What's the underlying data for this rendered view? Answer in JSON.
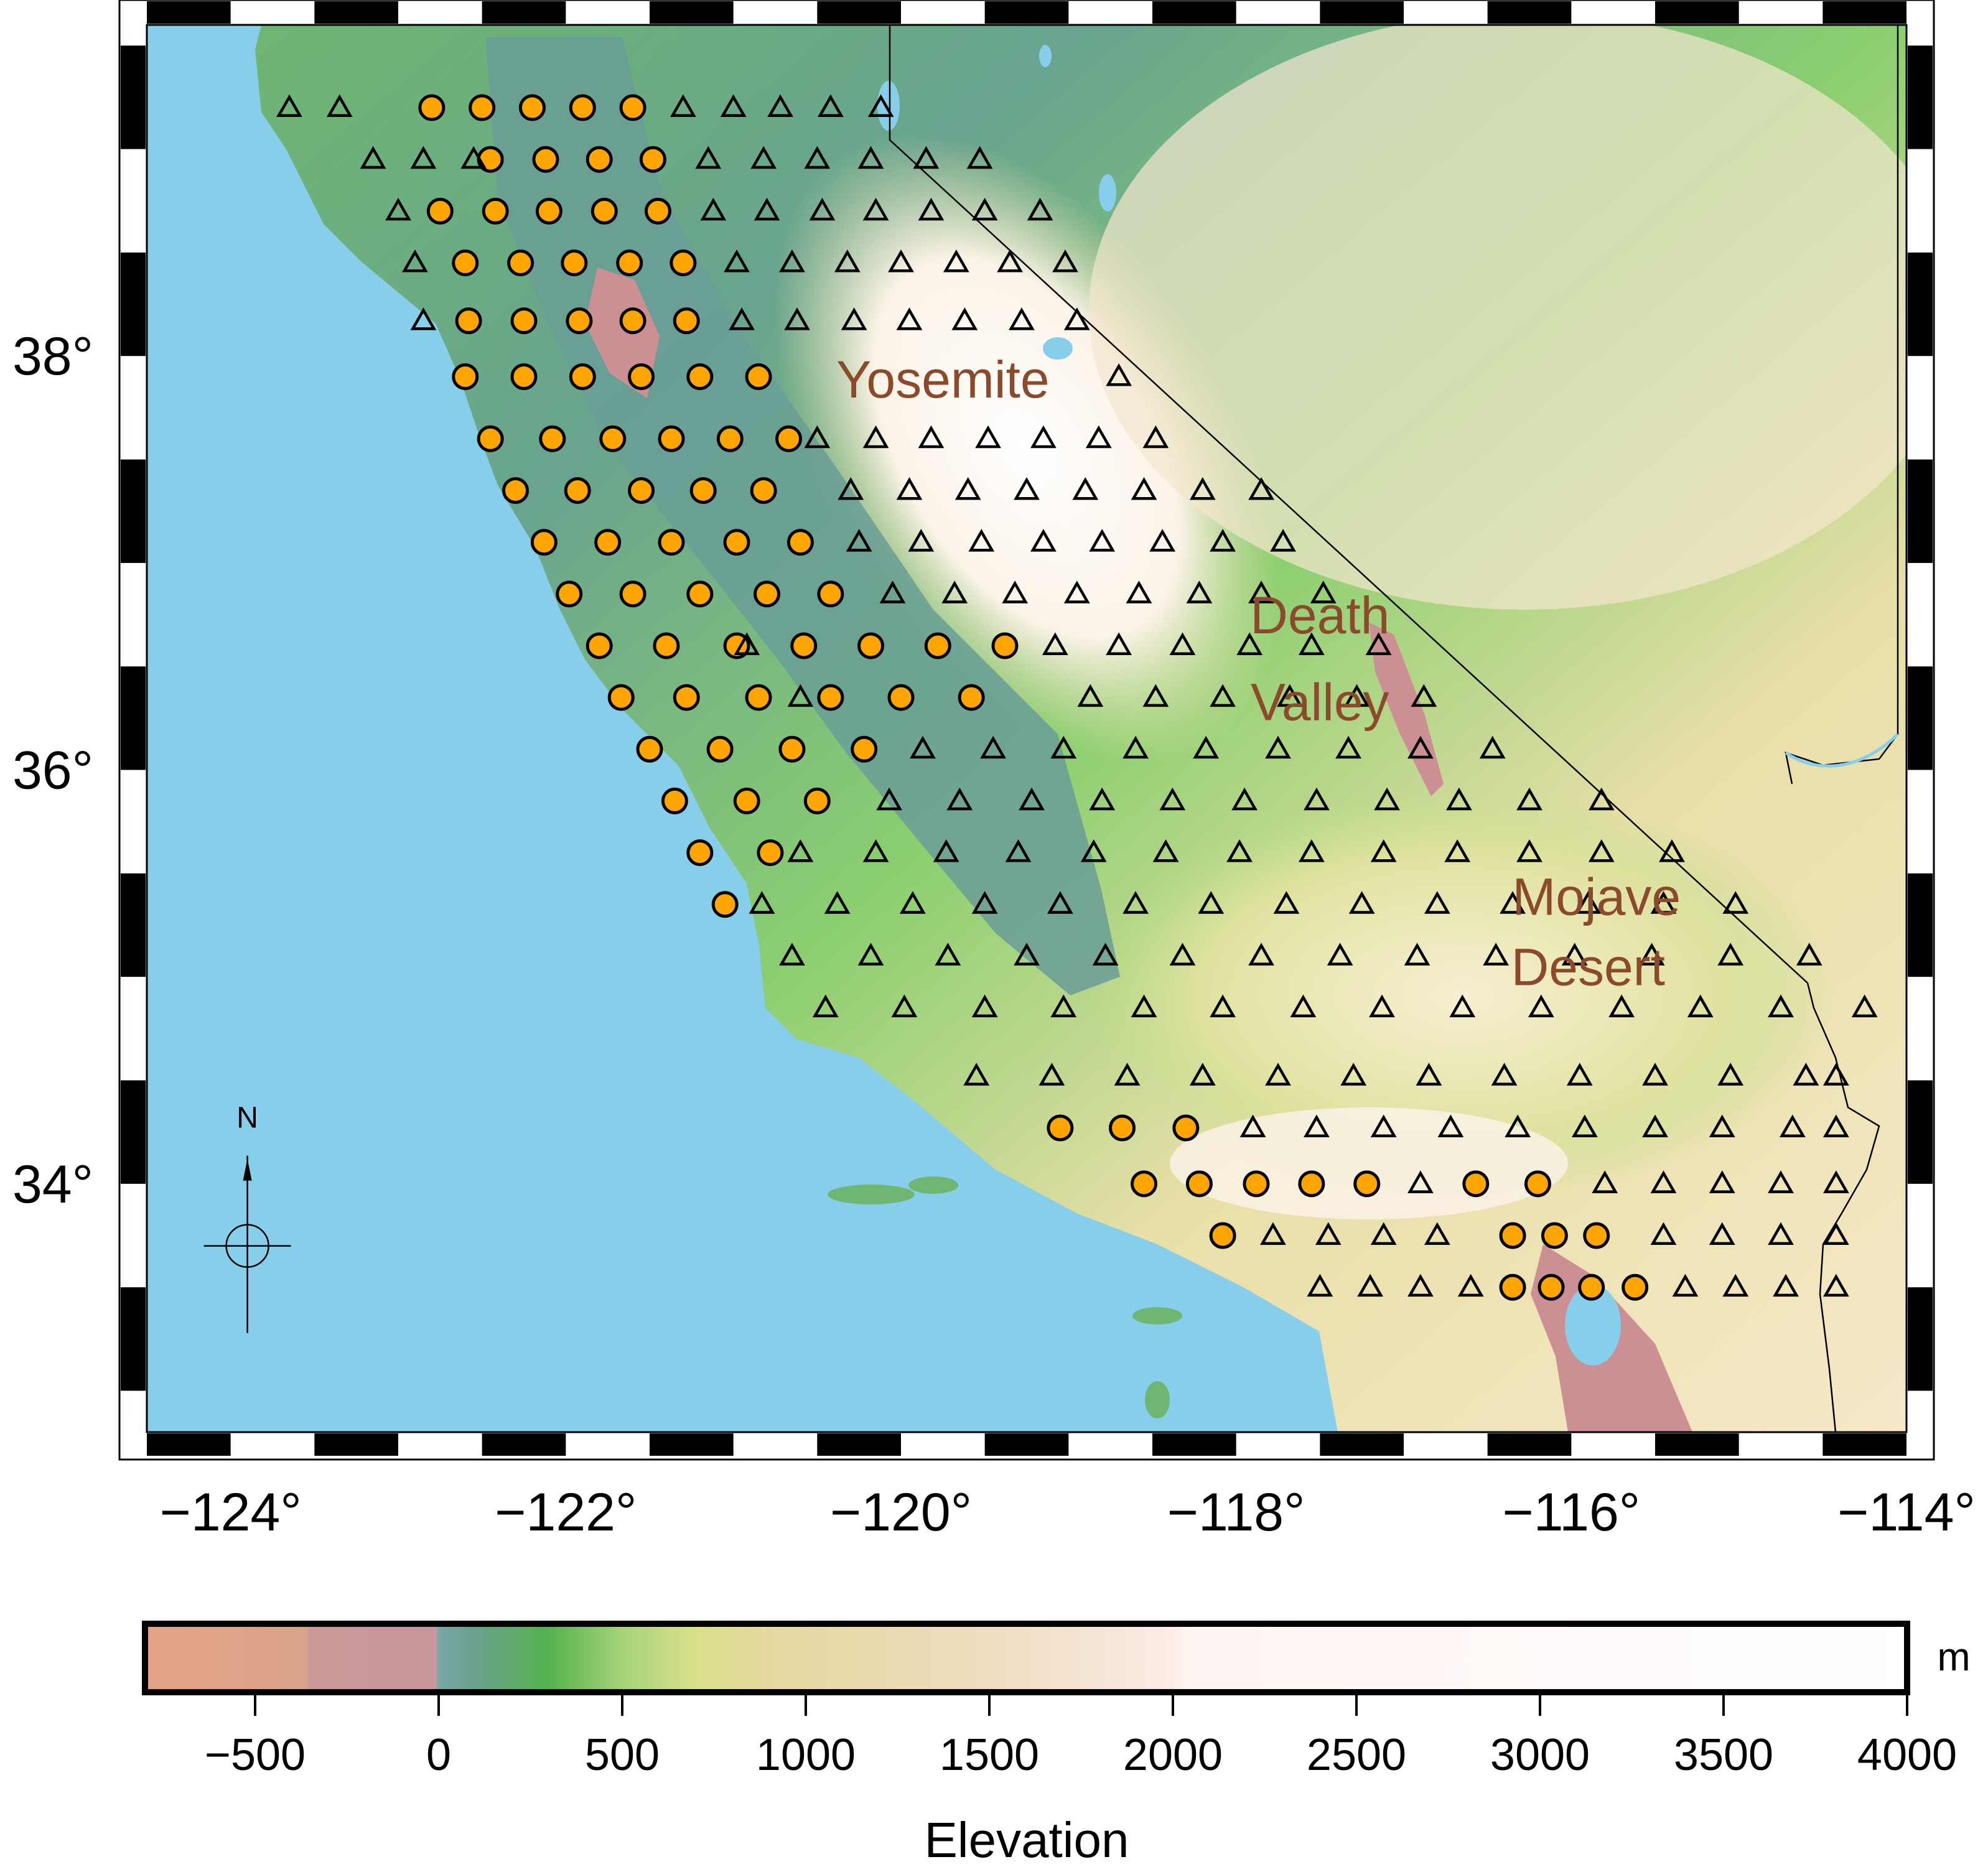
{
  "map": {
    "projection": "geographic",
    "lon_range": [
      -124.5,
      -114.0
    ],
    "lat_range": [
      32.8,
      39.6
    ],
    "frame": "checkered",
    "x_ticks": [
      {
        "value": -124,
        "label": "−124°"
      },
      {
        "value": -122,
        "label": "−122°"
      },
      {
        "value": -120,
        "label": "−120°"
      },
      {
        "value": -118,
        "label": "−118°"
      },
      {
        "value": -116,
        "label": "−116°"
      },
      {
        "value": -114,
        "label": "−114°"
      }
    ],
    "y_ticks": [
      {
        "value": 34,
        "label": "34°"
      },
      {
        "value": 36,
        "label": "36°"
      },
      {
        "value": 38,
        "label": "38°"
      }
    ],
    "place_labels": [
      {
        "text": "Yosemite",
        "lon": -119.75,
        "lat": 37.8
      },
      {
        "text": "Death",
        "lon": -117.5,
        "lat": 36.66
      },
      {
        "text": "Valley",
        "lon": -117.5,
        "lat": 36.24
      },
      {
        "text": "Mojave",
        "lon": -115.85,
        "lat": 35.3
      },
      {
        "text": "Desert",
        "lon": -115.9,
        "lat": 34.96
      }
    ],
    "compass": {
      "label": "N",
      "lon": -123.9,
      "lat": 33.7
    },
    "colors": {
      "ocean": "#87ceeb",
      "below_sea_level": "#cc8f93",
      "lowland": "#6aa08e",
      "green": "#5fba52",
      "yellow_green": "#cfe08e",
      "tan": "#e9d6a4",
      "high": "#fff8f2",
      "circle_marker": "#ffa500",
      "triangle_marker_outline": "#000000",
      "place_label": "#8b4a2b",
      "border": "#000000"
    }
  },
  "markers": {
    "circles": [
      [
        -122.8,
        39.2
      ],
      [
        -122.5,
        39.2
      ],
      [
        -122.2,
        39.2
      ],
      [
        -121.9,
        39.2
      ],
      [
        -121.6,
        39.2
      ],
      [
        -122.45,
        38.95
      ],
      [
        -122.12,
        38.95
      ],
      [
        -121.8,
        38.95
      ],
      [
        -121.48,
        38.95
      ],
      [
        -122.75,
        38.7
      ],
      [
        -122.42,
        38.7
      ],
      [
        -122.1,
        38.7
      ],
      [
        -121.77,
        38.7
      ],
      [
        -121.45,
        38.7
      ],
      [
        -122.6,
        38.45
      ],
      [
        -122.27,
        38.45
      ],
      [
        -121.95,
        38.45
      ],
      [
        -121.62,
        38.45
      ],
      [
        -121.3,
        38.45
      ],
      [
        -122.58,
        38.17
      ],
      [
        -122.25,
        38.17
      ],
      [
        -121.92,
        38.17
      ],
      [
        -121.6,
        38.17
      ],
      [
        -121.28,
        38.17
      ],
      [
        -122.6,
        37.9
      ],
      [
        -122.25,
        37.9
      ],
      [
        -121.9,
        37.9
      ],
      [
        -121.55,
        37.9
      ],
      [
        -121.2,
        37.9
      ],
      [
        -120.85,
        37.9
      ],
      [
        -122.45,
        37.6
      ],
      [
        -122.08,
        37.6
      ],
      [
        -121.72,
        37.6
      ],
      [
        -121.37,
        37.6
      ],
      [
        -121.02,
        37.6
      ],
      [
        -120.67,
        37.6
      ],
      [
        -122.3,
        37.35
      ],
      [
        -121.93,
        37.35
      ],
      [
        -121.55,
        37.35
      ],
      [
        -121.18,
        37.35
      ],
      [
        -120.82,
        37.35
      ],
      [
        -122.13,
        37.1
      ],
      [
        -121.75,
        37.1
      ],
      [
        -121.37,
        37.1
      ],
      [
        -120.98,
        37.1
      ],
      [
        -120.6,
        37.1
      ],
      [
        -121.98,
        36.85
      ],
      [
        -121.6,
        36.85
      ],
      [
        -121.2,
        36.85
      ],
      [
        -120.8,
        36.85
      ],
      [
        -120.42,
        36.85
      ],
      [
        -121.8,
        36.6
      ],
      [
        -121.4,
        36.6
      ],
      [
        -120.98,
        36.6
      ],
      [
        -120.58,
        36.6
      ],
      [
        -120.18,
        36.6
      ],
      [
        -119.78,
        36.6
      ],
      [
        -119.38,
        36.6
      ],
      [
        -121.67,
        36.35
      ],
      [
        -121.28,
        36.35
      ],
      [
        -120.85,
        36.35
      ],
      [
        -120.42,
        36.35
      ],
      [
        -120.0,
        36.35
      ],
      [
        -119.58,
        36.35
      ],
      [
        -121.5,
        36.1
      ],
      [
        -121.08,
        36.1
      ],
      [
        -120.65,
        36.1
      ],
      [
        -120.22,
        36.1
      ],
      [
        -121.35,
        35.85
      ],
      [
        -120.92,
        35.85
      ],
      [
        -120.5,
        35.85
      ],
      [
        -121.2,
        35.6
      ],
      [
        -120.78,
        35.6
      ],
      [
        -121.05,
        35.35
      ],
      [
        -119.05,
        34.27
      ],
      [
        -118.68,
        34.27
      ],
      [
        -118.3,
        34.27
      ],
      [
        -118.55,
        34.0
      ],
      [
        -118.22,
        34.0
      ],
      [
        -117.88,
        34.0
      ],
      [
        -117.55,
        34.0
      ],
      [
        -117.22,
        34.0
      ],
      [
        -116.57,
        34.0
      ],
      [
        -116.2,
        34.0
      ],
      [
        -118.08,
        33.75
      ],
      [
        -116.35,
        33.75
      ],
      [
        -116.1,
        33.75
      ],
      [
        -115.85,
        33.75
      ],
      [
        -116.35,
        33.5
      ],
      [
        -116.12,
        33.5
      ],
      [
        -115.88,
        33.5
      ],
      [
        -115.62,
        33.5
      ]
    ],
    "triangles": [
      [
        -123.65,
        39.2
      ],
      [
        -123.35,
        39.2
      ],
      [
        -121.3,
        39.2
      ],
      [
        -121.0,
        39.2
      ],
      [
        -120.72,
        39.2
      ],
      [
        -120.42,
        39.2
      ],
      [
        -120.12,
        39.2
      ],
      [
        -123.15,
        38.95
      ],
      [
        -122.85,
        38.95
      ],
      [
        -122.55,
        38.95
      ],
      [
        -121.15,
        38.95
      ],
      [
        -120.82,
        38.95
      ],
      [
        -120.5,
        38.95
      ],
      [
        -120.18,
        38.95
      ],
      [
        -119.85,
        38.95
      ],
      [
        -119.53,
        38.95
      ],
      [
        -123.0,
        38.7
      ],
      [
        -121.12,
        38.7
      ],
      [
        -120.8,
        38.7
      ],
      [
        -120.47,
        38.7
      ],
      [
        -120.15,
        38.7
      ],
      [
        -119.82,
        38.7
      ],
      [
        -119.5,
        38.7
      ],
      [
        -119.17,
        38.7
      ],
      [
        -122.9,
        38.45
      ],
      [
        -120.98,
        38.45
      ],
      [
        -120.65,
        38.45
      ],
      [
        -120.32,
        38.45
      ],
      [
        -120.0,
        38.45
      ],
      [
        -119.67,
        38.45
      ],
      [
        -119.35,
        38.45
      ],
      [
        -119.02,
        38.45
      ],
      [
        -122.85,
        38.17
      ],
      [
        -120.95,
        38.17
      ],
      [
        -120.62,
        38.17
      ],
      [
        -120.28,
        38.17
      ],
      [
        -119.95,
        38.17
      ],
      [
        -119.62,
        38.17
      ],
      [
        -119.28,
        38.17
      ],
      [
        -118.95,
        38.17
      ],
      [
        -118.7,
        37.9
      ],
      [
        -120.5,
        37.6
      ],
      [
        -120.15,
        37.6
      ],
      [
        -119.82,
        37.6
      ],
      [
        -119.48,
        37.6
      ],
      [
        -119.15,
        37.6
      ],
      [
        -118.82,
        37.6
      ],
      [
        -118.48,
        37.6
      ],
      [
        -120.3,
        37.35
      ],
      [
        -119.95,
        37.35
      ],
      [
        -119.6,
        37.35
      ],
      [
        -119.25,
        37.35
      ],
      [
        -118.9,
        37.35
      ],
      [
        -118.55,
        37.35
      ],
      [
        -118.2,
        37.35
      ],
      [
        -117.85,
        37.35
      ],
      [
        -120.25,
        37.1
      ],
      [
        -119.88,
        37.1
      ],
      [
        -119.52,
        37.1
      ],
      [
        -119.15,
        37.1
      ],
      [
        -118.8,
        37.1
      ],
      [
        -118.44,
        37.1
      ],
      [
        -118.08,
        37.1
      ],
      [
        -117.72,
        37.1
      ],
      [
        -120.05,
        36.85
      ],
      [
        -119.68,
        36.85
      ],
      [
        -119.32,
        36.85
      ],
      [
        -118.95,
        36.85
      ],
      [
        -118.58,
        36.85
      ],
      [
        -118.22,
        36.85
      ],
      [
        -117.85,
        36.85
      ],
      [
        -117.48,
        36.85
      ],
      [
        -120.92,
        36.6
      ],
      [
        -119.08,
        36.6
      ],
      [
        -118.7,
        36.6
      ],
      [
        -118.32,
        36.6
      ],
      [
        -117.92,
        36.6
      ],
      [
        -117.55,
        36.6
      ],
      [
        -117.15,
        36.6
      ],
      [
        -120.6,
        36.35
      ],
      [
        -118.87,
        36.35
      ],
      [
        -118.48,
        36.35
      ],
      [
        -118.08,
        36.35
      ],
      [
        -117.68,
        36.35
      ],
      [
        -117.28,
        36.35
      ],
      [
        -116.88,
        36.35
      ],
      [
        -119.87,
        36.1
      ],
      [
        -119.45,
        36.1
      ],
      [
        -119.03,
        36.1
      ],
      [
        -118.6,
        36.1
      ],
      [
        -118.18,
        36.1
      ],
      [
        -117.75,
        36.1
      ],
      [
        -117.33,
        36.1
      ],
      [
        -116.9,
        36.1
      ],
      [
        -116.47,
        36.1
      ],
      [
        -120.07,
        35.85
      ],
      [
        -119.65,
        35.85
      ],
      [
        -119.22,
        35.85
      ],
      [
        -118.8,
        35.85
      ],
      [
        -118.38,
        35.85
      ],
      [
        -117.95,
        35.85
      ],
      [
        -117.52,
        35.85
      ],
      [
        -117.1,
        35.85
      ],
      [
        -116.67,
        35.85
      ],
      [
        -116.25,
        35.85
      ],
      [
        -115.82,
        35.85
      ],
      [
        -120.6,
        35.6
      ],
      [
        -120.15,
        35.6
      ],
      [
        -119.73,
        35.6
      ],
      [
        -119.3,
        35.6
      ],
      [
        -118.85,
        35.6
      ],
      [
        -118.42,
        35.6
      ],
      [
        -117.98,
        35.6
      ],
      [
        -117.55,
        35.6
      ],
      [
        -117.12,
        35.6
      ],
      [
        -116.68,
        35.6
      ],
      [
        -116.25,
        35.6
      ],
      [
        -115.82,
        35.6
      ],
      [
        -115.4,
        35.6
      ],
      [
        -120.83,
        35.35
      ],
      [
        -120.38,
        35.35
      ],
      [
        -119.93,
        35.35
      ],
      [
        -119.5,
        35.35
      ],
      [
        -119.05,
        35.35
      ],
      [
        -118.6,
        35.35
      ],
      [
        -118.15,
        35.35
      ],
      [
        -117.7,
        35.35
      ],
      [
        -117.25,
        35.35
      ],
      [
        -116.8,
        35.35
      ],
      [
        -116.35,
        35.35
      ],
      [
        -115.9,
        35.35
      ],
      [
        -115.45,
        35.35
      ],
      [
        -115.02,
        35.35
      ],
      [
        -120.65,
        35.1
      ],
      [
        -120.18,
        35.1
      ],
      [
        -119.72,
        35.1
      ],
      [
        -119.25,
        35.1
      ],
      [
        -118.78,
        35.1
      ],
      [
        -118.32,
        35.1
      ],
      [
        -117.85,
        35.1
      ],
      [
        -117.38,
        35.1
      ],
      [
        -116.92,
        35.1
      ],
      [
        -116.45,
        35.1
      ],
      [
        -115.98,
        35.1
      ],
      [
        -115.52,
        35.1
      ],
      [
        -115.05,
        35.1
      ],
      [
        -114.58,
        35.1
      ],
      [
        -120.45,
        34.85
      ],
      [
        -119.98,
        34.85
      ],
      [
        -119.5,
        34.85
      ],
      [
        -119.03,
        34.85
      ],
      [
        -118.55,
        34.85
      ],
      [
        -118.08,
        34.85
      ],
      [
        -117.6,
        34.85
      ],
      [
        -117.13,
        34.85
      ],
      [
        -116.65,
        34.85
      ],
      [
        -116.18,
        34.85
      ],
      [
        -115.7,
        34.85
      ],
      [
        -115.23,
        34.85
      ],
      [
        -114.75,
        34.85
      ],
      [
        -119.55,
        34.52
      ],
      [
        -119.1,
        34.52
      ],
      [
        -118.65,
        34.52
      ],
      [
        -118.2,
        34.52
      ],
      [
        -117.75,
        34.52
      ],
      [
        -117.3,
        34.52
      ],
      [
        -116.85,
        34.52
      ],
      [
        -116.4,
        34.52
      ],
      [
        -115.95,
        34.52
      ],
      [
        -115.5,
        34.52
      ],
      [
        -115.05,
        34.52
      ],
      [
        -114.6,
        34.52
      ],
      [
        -117.9,
        34.27
      ],
      [
        -117.52,
        34.27
      ],
      [
        -117.12,
        34.27
      ],
      [
        -116.72,
        34.27
      ],
      [
        -116.32,
        34.27
      ],
      [
        -115.92,
        34.27
      ],
      [
        -115.5,
        34.27
      ],
      [
        -115.1,
        34.27
      ],
      [
        -114.68,
        34.27
      ],
      [
        -116.9,
        34.0
      ],
      [
        -115.8,
        34.0
      ],
      [
        -115.45,
        34.0
      ],
      [
        -115.1,
        34.0
      ],
      [
        -114.75,
        34.0
      ],
      [
        -114.42,
        34.0
      ],
      [
        -117.78,
        33.75
      ],
      [
        -117.45,
        33.75
      ],
      [
        -117.12,
        33.75
      ],
      [
        -116.8,
        33.75
      ],
      [
        -115.45,
        33.75
      ],
      [
        -115.1,
        33.75
      ],
      [
        -114.75,
        33.75
      ],
      [
        -114.42,
        33.75
      ],
      [
        -117.5,
        33.5
      ],
      [
        -117.2,
        33.5
      ],
      [
        -116.9,
        33.5
      ],
      [
        -116.6,
        33.5
      ],
      [
        -115.32,
        33.5
      ],
      [
        -115.02,
        33.5
      ],
      [
        -114.72,
        33.5
      ],
      [
        -114.42,
        33.5
      ],
      [
        -114.25,
        34.85
      ],
      [
        -114.42,
        34.52
      ],
      [
        -114.42,
        34.27
      ]
    ]
  },
  "colorbar": {
    "title": "Elevation",
    "unit": "m",
    "range": [
      -800,
      4000
    ],
    "ticks": [
      {
        "value": -500,
        "label": "−500"
      },
      {
        "value": 0,
        "label": "0"
      },
      {
        "value": 500,
        "label": "500"
      },
      {
        "value": 1000,
        "label": "1000"
      },
      {
        "value": 1500,
        "label": "1500"
      },
      {
        "value": 2000,
        "label": "2000"
      },
      {
        "value": 2500,
        "label": "2500"
      },
      {
        "value": 3000,
        "label": "3000"
      },
      {
        "value": 3500,
        "label": "3500"
      },
      {
        "value": 4000,
        "label": "4000"
      }
    ],
    "color_stops": [
      {
        "value": -800,
        "color": "#e5a387"
      },
      {
        "value": -360,
        "color": "#d9a389"
      },
      {
        "value": -350,
        "color": "#cc9a9a"
      },
      {
        "value": -10,
        "color": "#c9979c"
      },
      {
        "value": 0,
        "color": "#79a8a8"
      },
      {
        "value": 100,
        "color": "#6aa08e"
      },
      {
        "value": 300,
        "color": "#55b24e"
      },
      {
        "value": 500,
        "color": "#a6d379"
      },
      {
        "value": 700,
        "color": "#d9e08a"
      },
      {
        "value": 900,
        "color": "#e6d9a0"
      },
      {
        "value": 1500,
        "color": "#f0dcc0"
      },
      {
        "value": 2000,
        "color": "#fbece6"
      },
      {
        "value": 2050,
        "color": "#fff6f3"
      },
      {
        "value": 3200,
        "color": "#fffafa"
      },
      {
        "value": 4000,
        "color": "#ffffff"
      }
    ]
  }
}
